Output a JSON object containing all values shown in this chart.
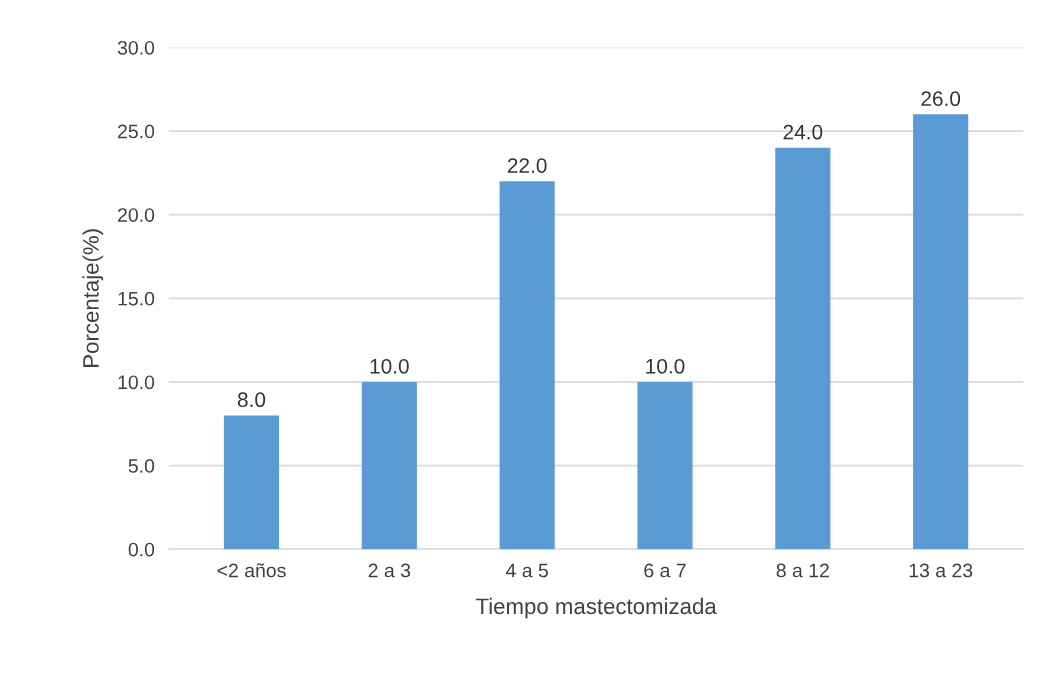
{
  "chart_data": {
    "type": "bar",
    "xlabel": "Tiempo mastectomizada",
    "ylabel": "Porcentaje(%)",
    "categories": [
      "<2 años",
      "2 a 3",
      "4 a 5",
      "6 a 7",
      "8 a 12",
      "13 a 23"
    ],
    "values": [
      8.0,
      10.0,
      22.0,
      10.0,
      24.0,
      26.0
    ],
    "value_labels": [
      "8.0",
      "10.0",
      "22.0",
      "10.0",
      "24.0",
      "26.0"
    ],
    "color": "#5b9bd5",
    "ylim": [
      0,
      30
    ],
    "yticks": [
      {
        "value": 0,
        "label": "0.0"
      },
      {
        "value": 5,
        "label": "5.0"
      },
      {
        "value": 10,
        "label": "10.0"
      },
      {
        "value": 15,
        "label": "15.0"
      },
      {
        "value": 20,
        "label": "20.0"
      },
      {
        "value": 25,
        "label": "25.0"
      },
      {
        "value": 30,
        "label": "30.0"
      }
    ],
    "grid": "y"
  }
}
